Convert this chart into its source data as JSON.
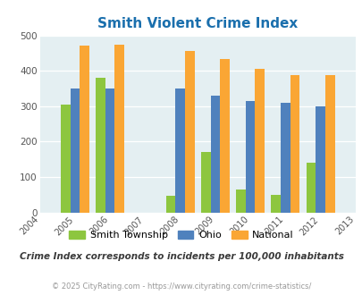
{
  "title": "Smith Violent Crime Index",
  "subtitle": "Crime Index corresponds to incidents per 100,000 inhabitants",
  "footer": "© 2025 CityRating.com - https://www.cityrating.com/crime-statistics/",
  "years": [
    2004,
    2005,
    2006,
    2007,
    2008,
    2009,
    2010,
    2011,
    2012,
    2013
  ],
  "data_years": [
    2005,
    2006,
    2008,
    2009,
    2010,
    2011,
    2012
  ],
  "smith": [
    305,
    380,
    47,
    170,
    65,
    50,
    140
  ],
  "ohio": [
    350,
    350,
    350,
    330,
    315,
    310,
    300
  ],
  "national": [
    470,
    473,
    455,
    433,
    405,
    387,
    387
  ],
  "smith_color": "#8dc63f",
  "ohio_color": "#4f81bd",
  "national_color": "#faa634",
  "bg_color": "#e4eff2",
  "title_color": "#1a6fad",
  "subtitle_color": "#3a3a3a",
  "footer_color": "#999999",
  "ylim": [
    0,
    500
  ],
  "yticks": [
    0,
    100,
    200,
    300,
    400,
    500
  ],
  "bar_width": 0.27
}
